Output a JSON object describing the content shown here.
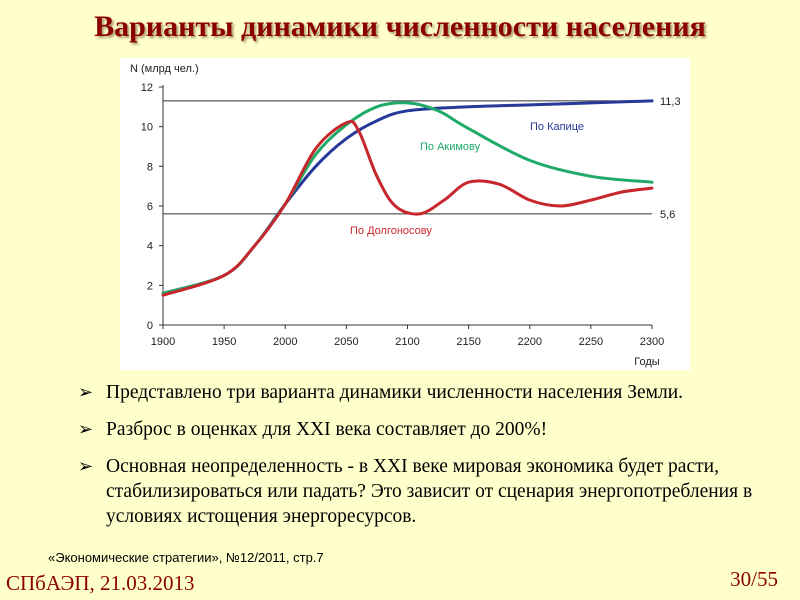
{
  "slide": {
    "title": "Варианты динамики численности населения",
    "bullets": [
      "Представлено три варианта динамики численности населения Земли.",
      "Разброс в оценках для XXI века составляет до 200%!",
      "Основная неопределенность - в XXI веке мировая экономика будет расти, стабилизироваться или падать? Это зависит от сценария энергопотребления в условиях истощения энергоресурсов."
    ],
    "bullet_marker": "➢",
    "source": "«Экономические стратегии», №12/2011, стр.7",
    "footer_left": "СПбАЭП, 21.03.2013",
    "page_number": "30/55"
  },
  "colors": {
    "title": "#8b0000",
    "background": "#ffffcc",
    "kapitsa": "#26389a",
    "akimov": "#1faa67",
    "dolgonosov": "#c7262c"
  },
  "chart_data": {
    "type": "line",
    "ylabel": "N (млрд чел.)",
    "xlabel": "Годы",
    "xlim": [
      1900,
      2300
    ],
    "ylim": [
      0,
      12
    ],
    "xticks": [
      1900,
      1950,
      2000,
      2050,
      2100,
      2150,
      2200,
      2250,
      2300
    ],
    "yticks": [
      0,
      2,
      4,
      6,
      8,
      10,
      12
    ],
    "reference_lines": [
      {
        "y": 11.3,
        "label": "11,3"
      },
      {
        "y": 5.6,
        "label": "5,6"
      }
    ],
    "series": [
      {
        "name": "По Капице",
        "color": "#26389a",
        "x": [
          1900,
          1950,
          1975,
          2000,
          2025,
          2050,
          2075,
          2100,
          2150,
          2200,
          2250,
          2300
        ],
        "y": [
          1.6,
          2.5,
          4.0,
          6.1,
          8.0,
          9.4,
          10.3,
          10.8,
          11.0,
          11.1,
          11.2,
          11.3
        ]
      },
      {
        "name": "По Акимову",
        "color": "#1faa67",
        "x": [
          1900,
          1950,
          1975,
          2000,
          2025,
          2050,
          2075,
          2100,
          2125,
          2150,
          2200,
          2250,
          2300
        ],
        "y": [
          1.6,
          2.5,
          4.0,
          6.1,
          8.6,
          10.1,
          11.0,
          11.2,
          10.8,
          9.9,
          8.3,
          7.5,
          7.2
        ]
      },
      {
        "name": "По Долгоносову",
        "color": "#c7262c",
        "x": [
          1900,
          1950,
          1975,
          2000,
          2025,
          2050,
          2060,
          2075,
          2090,
          2110,
          2130,
          2150,
          2175,
          2200,
          2225,
          2250,
          2275,
          2300
        ],
        "y": [
          1.5,
          2.5,
          4.0,
          6.1,
          8.9,
          10.2,
          9.8,
          7.5,
          6.0,
          5.6,
          6.3,
          7.2,
          7.1,
          6.3,
          6.0,
          6.3,
          6.7,
          6.9
        ]
      }
    ],
    "annotations": [
      {
        "text": "По Капице",
        "series": "По Капице"
      },
      {
        "text": "По Акимову",
        "series": "По Акимову"
      },
      {
        "text": "По Долгоносову",
        "series": "По Долгоносову"
      }
    ],
    "grid": false,
    "legend": "inline labels"
  }
}
